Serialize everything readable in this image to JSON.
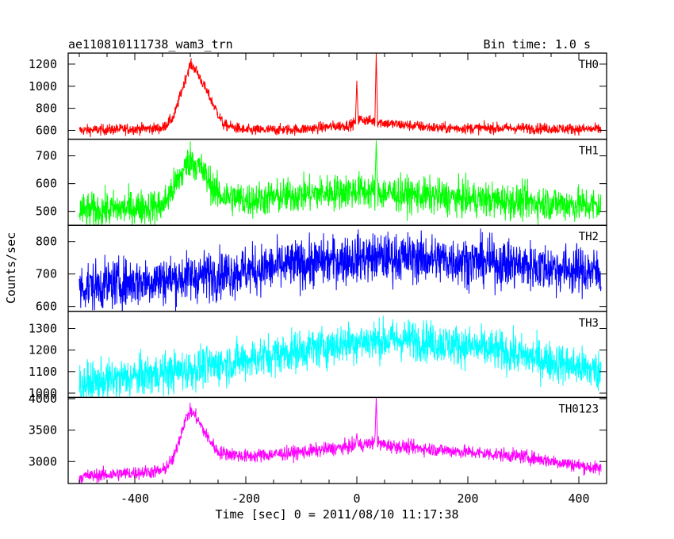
{
  "chart_data": {
    "type": "line",
    "title_left": "ae110810111738_wam3_trn",
    "title_right": "Bin time: 1.0 s",
    "xlabel": "Time [sec] 0 = 2011/08/10 11:17:38",
    "ylabel": "Counts/sec",
    "xlim": [
      -520,
      450
    ],
    "x_ticks": [
      -400,
      -200,
      0,
      200,
      400
    ],
    "x_range": [
      -500,
      440
    ],
    "series": [
      {
        "name": "TH0",
        "color": "#ff0000",
        "ylim": [
          520,
          1300
        ],
        "y_ticks": [
          600,
          800,
          1000,
          1200
        ],
        "profile": [
          [
            -500,
            600
          ],
          [
            -350,
            620
          ],
          [
            -330,
            720
          ],
          [
            -310,
            1050
          ],
          [
            -300,
            1200
          ],
          [
            -290,
            1150
          ],
          [
            -270,
            950
          ],
          [
            -240,
            650
          ],
          [
            -200,
            600
          ],
          [
            -100,
            610
          ],
          [
            -10,
            650
          ],
          [
            5,
            700
          ],
          [
            60,
            660
          ],
          [
            150,
            620
          ],
          [
            300,
            620
          ],
          [
            440,
            610
          ]
        ],
        "noise": 25,
        "spikes": [
          [
            0,
            1050
          ],
          [
            35,
            1300
          ]
        ]
      },
      {
        "name": "TH1",
        "color": "#00ff00",
        "ylim": [
          450,
          760
        ],
        "y_ticks": [
          500,
          600,
          700
        ],
        "profile": [
          [
            -500,
            500
          ],
          [
            -350,
            520
          ],
          [
            -320,
            620
          ],
          [
            -300,
            690
          ],
          [
            -280,
            650
          ],
          [
            -250,
            560
          ],
          [
            -200,
            540
          ],
          [
            -100,
            560
          ],
          [
            0,
            575
          ],
          [
            60,
            565
          ],
          [
            200,
            545
          ],
          [
            440,
            520
          ]
        ],
        "noise": 32,
        "spikes": [
          [
            35,
            755
          ]
        ]
      },
      {
        "name": "TH2",
        "color": "#0000ff",
        "ylim": [
          585,
          850
        ],
        "y_ticks": [
          600,
          700,
          800
        ],
        "profile": [
          [
            -500,
            660
          ],
          [
            -300,
            690
          ],
          [
            -100,
            730
          ],
          [
            0,
            750
          ],
          [
            100,
            750
          ],
          [
            250,
            735
          ],
          [
            440,
            705
          ]
        ],
        "noise": 38,
        "spikes": []
      },
      {
        "name": "TH3",
        "color": "#00ffff",
        "ylim": [
          980,
          1380
        ],
        "y_ticks": [
          1000,
          1100,
          1200,
          1300
        ],
        "profile": [
          [
            -500,
            1040
          ],
          [
            -300,
            1110
          ],
          [
            -100,
            1200
          ],
          [
            0,
            1240
          ],
          [
            100,
            1250
          ],
          [
            250,
            1200
          ],
          [
            440,
            1100
          ]
        ],
        "noise": 48,
        "spikes": []
      },
      {
        "name": "TH0123",
        "color": "#ff00ff",
        "ylim": [
          2650,
          4020
        ],
        "y_ticks": [
          3000,
          3500,
          4000
        ],
        "profile": [
          [
            -500,
            2760
          ],
          [
            -350,
            2850
          ],
          [
            -330,
            3050
          ],
          [
            -310,
            3650
          ],
          [
            -300,
            3800
          ],
          [
            -290,
            3720
          ],
          [
            -270,
            3400
          ],
          [
            -250,
            3150
          ],
          [
            -200,
            3080
          ],
          [
            -100,
            3150
          ],
          [
            0,
            3250
          ],
          [
            30,
            3300
          ],
          [
            60,
            3250
          ],
          [
            200,
            3150
          ],
          [
            300,
            3080
          ],
          [
            440,
            2880
          ]
        ],
        "noise": 55,
        "spikes": [
          [
            0,
            3450
          ],
          [
            35,
            4020
          ]
        ]
      }
    ]
  }
}
